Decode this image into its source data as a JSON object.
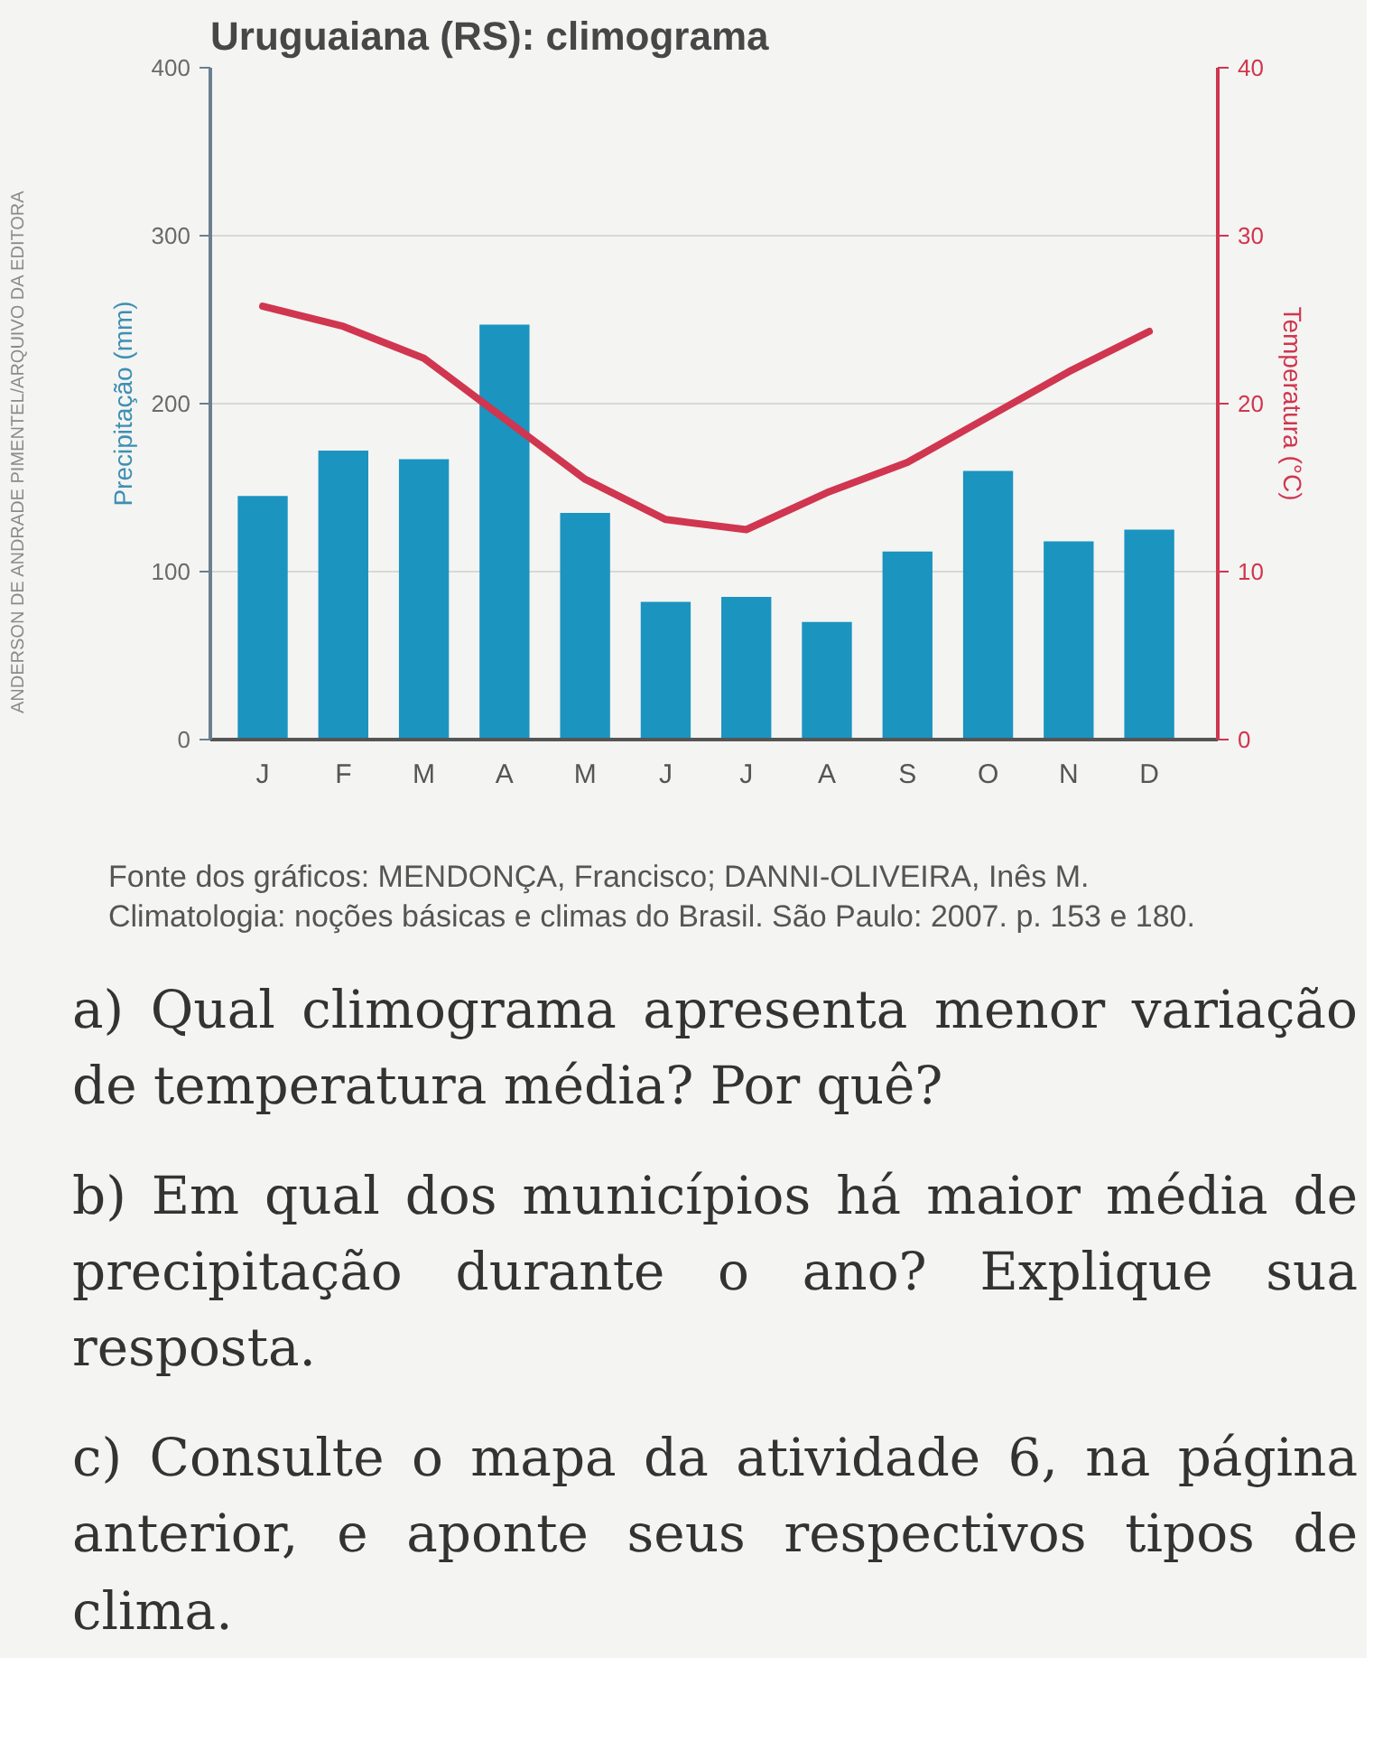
{
  "chart_data": {
    "type": "bar",
    "title": "Uruguaiana (RS): climograma",
    "categories": [
      "J",
      "F",
      "M",
      "A",
      "M",
      "J",
      "J",
      "A",
      "S",
      "O",
      "N",
      "D"
    ],
    "series": [
      {
        "color": "#1b94c0",
        "values": [
          145,
          172,
          167,
          247,
          135,
          82,
          85,
          70,
          112,
          160,
          118,
          125
        ]
      },
      {
        "type": "line",
        "axis": "y2",
        "color": "#d0364f",
        "values": [
          25.8,
          24.6,
          22.7,
          19.1,
          15.5,
          13.1,
          12.5,
          14.7,
          16.5,
          19.2,
          21.9,
          24.3
        ]
      }
    ],
    "ylabel": "Precipitação (mm)",
    "y2label": "Temperatura (°C)",
    "ylim": [
      0,
      400
    ],
    "yticks": [
      0,
      100,
      200,
      300,
      400
    ],
    "y2lim": [
      0,
      40
    ],
    "y2ticks": [
      0,
      10,
      20,
      30,
      40
    ],
    "grid": "y",
    "annotations": [
      "ANDERSON DE ANDRADE PIMENTEL/ARQUIVO DA EDITORA",
      "Fonte dos gráficos: MENDONÇA, Francisco; DANNI-OLIVEIRA, Inês M. Climatologia: noções básicas e climas do Brasil. São Paulo: 2007. p. 153 e 180.",
      "a) Qual climograma apresenta menor variação de temperatura média? Por quê?",
      "b) Em qual dos municípios há maior média de precipitação durante o ano? Explique sua resposta.",
      "c) Consulte o mapa da atividade 6, na página anterior, e aponte seus respectivos tipos de clima."
    ]
  }
}
